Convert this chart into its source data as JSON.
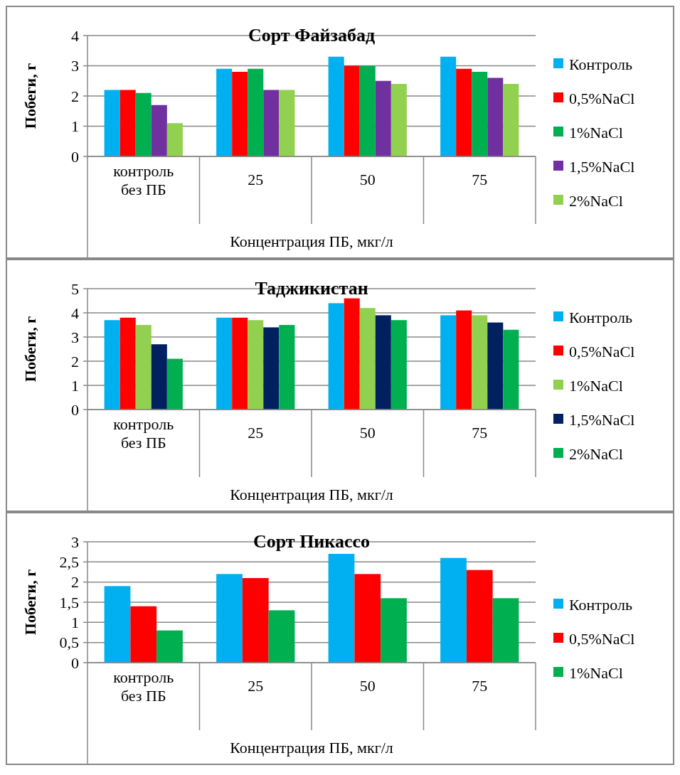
{
  "chart_data": [
    {
      "type": "bar",
      "title": "Сорт Файзабад",
      "xlabel": "Концентрация ПБ, мкг/л",
      "ylabel": "Побеги, г",
      "categories": [
        "контроль без ПБ",
        "25",
        "50",
        "75"
      ],
      "ylim": [
        0,
        4
      ],
      "yticks": [
        0,
        1,
        2,
        3,
        4
      ],
      "grid": "y",
      "legend": "right",
      "series": [
        {
          "name": "Контроль",
          "color": "#00b0f0",
          "values": [
            2.2,
            2.9,
            3.3,
            3.3
          ]
        },
        {
          "name": "0,5%NaCl",
          "color": "#ff0000",
          "values": [
            2.2,
            2.8,
            3.0,
            2.9
          ]
        },
        {
          "name": "1%NaCl",
          "color": "#00b050",
          "values": [
            2.1,
            2.9,
            3.0,
            2.8
          ]
        },
        {
          "name": "1,5%NaCl",
          "color": "#7030a0",
          "values": [
            1.7,
            2.2,
            2.5,
            2.6
          ]
        },
        {
          "name": "2%NaCl",
          "color": "#92d050",
          "values": [
            1.1,
            2.2,
            2.4,
            2.4
          ]
        }
      ]
    },
    {
      "type": "bar",
      "title": "Таджикистан",
      "xlabel": "Концентрация ПБ, мкг/л",
      "ylabel": "Побеги, г",
      "categories": [
        "контроль без ПБ",
        "25",
        "50",
        "75"
      ],
      "ylim": [
        0,
        5
      ],
      "yticks": [
        0,
        1,
        2,
        3,
        4,
        5
      ],
      "grid": "y",
      "legend": "right",
      "series": [
        {
          "name": "Контроль",
          "color": "#00b0f0",
          "values": [
            3.7,
            3.8,
            4.4,
            3.9
          ]
        },
        {
          "name": "0,5%NaCl",
          "color": "#ff0000",
          "values": [
            3.8,
            3.8,
            4.6,
            4.1
          ]
        },
        {
          "name": "1%NaCl",
          "color": "#92d050",
          "values": [
            3.5,
            3.7,
            4.2,
            3.9
          ]
        },
        {
          "name": "1,5%NaCl",
          "color": "#002060",
          "values": [
            2.7,
            3.4,
            3.9,
            3.6
          ]
        },
        {
          "name": "2%NaCl",
          "color": "#00b050",
          "values": [
            2.1,
            3.5,
            3.7,
            3.3
          ]
        }
      ]
    },
    {
      "type": "bar",
      "title": "Сорт Пикассо",
      "xlabel": "Концентрация ПБ, мкг/л",
      "ylabel": "Побеги, г",
      "categories": [
        "контроль без ПБ",
        "25",
        "50",
        "75"
      ],
      "ylim": [
        0,
        3
      ],
      "yticks": [
        0,
        {
          "value": 0.5,
          "label": "0,5"
        },
        1,
        {
          "value": 1.5,
          "label": "1,5"
        },
        2,
        {
          "value": 2.5,
          "label": "2,5"
        },
        3
      ],
      "grid": "y",
      "legend": "right",
      "series": [
        {
          "name": "Контроль",
          "color": "#00b0f0",
          "values": [
            1.9,
            2.2,
            2.7,
            2.6
          ]
        },
        {
          "name": "0,5%NaCl",
          "color": "#ff0000",
          "values": [
            1.4,
            2.1,
            2.2,
            2.3
          ]
        },
        {
          "name": "1%NaCl",
          "color": "#00b050",
          "values": [
            0.8,
            1.3,
            1.6,
            1.6
          ]
        }
      ]
    }
  ]
}
